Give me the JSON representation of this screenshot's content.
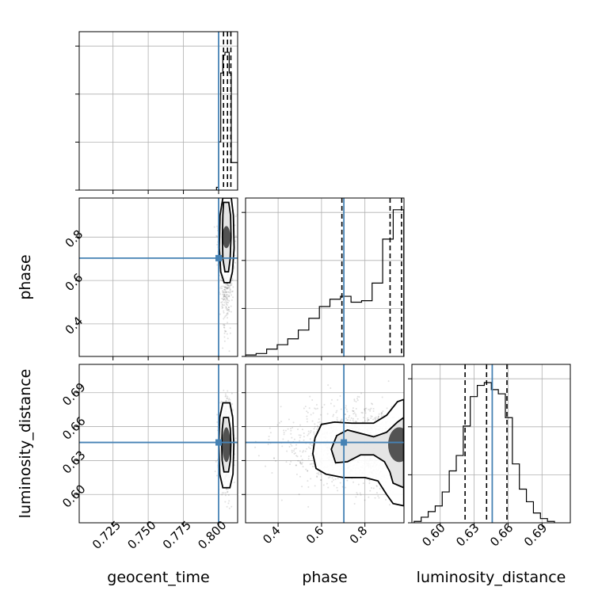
{
  "chart_data": {
    "type": "corner",
    "parameters": [
      "geocent_time",
      "phase",
      "luminosity_distance"
    ],
    "axis_labels": {
      "geocent_time": "geocent_time",
      "phase": "phase",
      "luminosity_distance": "luminosity_distance"
    },
    "ranges": {
      "geocent_time": [
        0.701,
        0.8135
      ],
      "phase": [
        0.25,
        0.98
      ],
      "luminosity_distance": [
        0.575,
        0.715
      ]
    },
    "ticks": {
      "geocent_time": [
        "0.725",
        "0.750",
        "0.775",
        "0.800"
      ],
      "phase": [
        "0.4",
        "0.6",
        "0.8"
      ],
      "luminosity_distance": [
        "0.60",
        "0.63",
        "0.66",
        "0.69"
      ]
    },
    "truths": {
      "geocent_time": 0.8,
      "phase": 0.703,
      "luminosity_distance": 0.646
    },
    "truth_color": "#4682b4",
    "quantiles": {
      "geocent_time": [
        0.8035,
        0.8063,
        0.8087
      ],
      "phase": [
        0.694,
        0.916,
        0.969
      ],
      "luminosity_distance": [
        0.622,
        0.641,
        0.659
      ]
    },
    "marginals": {
      "geocent_time": {
        "bin_edges": [
          0.7985,
          0.8,
          0.8015,
          0.803,
          0.8045,
          0.806,
          0.8075,
          0.809,
          0.8105,
          0.8135
        ],
        "counts": [
          0.02,
          0.35,
          0.85,
          0.98,
          1.0,
          1.0,
          0.85,
          0.2,
          0.2
        ]
      },
      "phase": {
        "bin_edges": [
          0.25,
          0.2986,
          0.3472,
          0.3958,
          0.4444,
          0.493,
          0.5416,
          0.5902,
          0.6388,
          0.6874,
          0.736,
          0.7846,
          0.8332,
          0.8818,
          0.9304,
          0.979
        ],
        "counts": [
          0.01,
          0.02,
          0.05,
          0.08,
          0.12,
          0.18,
          0.26,
          0.34,
          0.39,
          0.41,
          0.37,
          0.38,
          0.5,
          0.8,
          1.0
        ],
        "ymax": 1.08
      },
      "luminosity_distance": {
        "bin_edges": [
          0.577,
          0.5832,
          0.5894,
          0.5956,
          0.6018,
          0.608,
          0.6142,
          0.6204,
          0.6266,
          0.6328,
          0.639,
          0.6452,
          0.6514,
          0.6576,
          0.6638,
          0.67,
          0.6762,
          0.6824,
          0.6886,
          0.6948,
          0.701
        ],
        "counts": [
          0.01,
          0.04,
          0.08,
          0.12,
          0.22,
          0.37,
          0.48,
          0.69,
          0.9,
          0.98,
          1.0,
          0.95,
          0.92,
          0.75,
          0.42,
          0.24,
          0.15,
          0.07,
          0.03,
          0.01
        ],
        "ymax": 1.13
      }
    },
    "joint_2d": [
      {
        "x": "geocent_time",
        "y": "phase",
        "center": [
          0.8055,
          0.8
        ],
        "spread": [
          0.0022,
          0.12
        ],
        "contours": [
          [
            [
              0.8035,
              0.96
            ],
            [
              0.8072,
              0.96
            ],
            [
              0.8085,
              0.9
            ],
            [
              0.8088,
              0.8
            ],
            [
              0.8082,
              0.7
            ],
            [
              0.807,
              0.64
            ],
            [
              0.8045,
              0.64
            ],
            [
              0.803,
              0.7
            ],
            [
              0.8027,
              0.8
            ],
            [
              0.803,
              0.9
            ]
          ],
          [
            [
              0.803,
              0.98
            ],
            [
              0.809,
              0.98
            ],
            [
              0.8105,
              0.9
            ],
            [
              0.811,
              0.75
            ],
            [
              0.8098,
              0.64
            ],
            [
              0.808,
              0.59
            ],
            [
              0.804,
              0.59
            ],
            [
              0.8015,
              0.64
            ],
            [
              0.8005,
              0.75
            ],
            [
              0.801,
              0.9
            ]
          ]
        ]
      },
      {
        "x": "geocent_time",
        "y": "luminosity_distance",
        "center": [
          0.8055,
          0.644
        ],
        "spread": [
          0.0022,
          0.016
        ],
        "contours": [
          [
            [
              0.8035,
              0.668
            ],
            [
              0.807,
              0.668
            ],
            [
              0.8083,
              0.658
            ],
            [
              0.8087,
              0.644
            ],
            [
              0.8083,
              0.63
            ],
            [
              0.807,
              0.62
            ],
            [
              0.8038,
              0.62
            ],
            [
              0.8025,
              0.63
            ],
            [
              0.8022,
              0.644
            ],
            [
              0.8026,
              0.658
            ]
          ],
          [
            [
              0.803,
              0.681
            ],
            [
              0.808,
              0.681
            ],
            [
              0.81,
              0.668
            ],
            [
              0.8108,
              0.644
            ],
            [
              0.8102,
              0.618
            ],
            [
              0.808,
              0.606
            ],
            [
              0.803,
              0.606
            ],
            [
              0.8008,
              0.618
            ],
            [
              0.8002,
              0.644
            ],
            [
              0.8008,
              0.668
            ]
          ]
        ]
      },
      {
        "x": "phase",
        "y": "luminosity_distance",
        "center": [
          0.9,
          0.644
        ],
        "spread": [
          0.18,
          0.017
        ],
        "contours": [
          [
            [
              0.979,
              0.668
            ],
            [
              0.95,
              0.664
            ],
            [
              0.9,
              0.655
            ],
            [
              0.84,
              0.651
            ],
            [
              0.78,
              0.654
            ],
            [
              0.72,
              0.657
            ],
            [
              0.67,
              0.652
            ],
            [
              0.645,
              0.64
            ],
            [
              0.665,
              0.628
            ],
            [
              0.72,
              0.629
            ],
            [
              0.78,
              0.635
            ],
            [
              0.84,
              0.635
            ],
            [
              0.89,
              0.629
            ],
            [
              0.915,
              0.62
            ],
            [
              0.93,
              0.61
            ],
            [
              0.979,
              0.606
            ]
          ],
          [
            [
              0.979,
              0.684
            ],
            [
              0.95,
              0.682
            ],
            [
              0.9,
              0.67
            ],
            [
              0.84,
              0.663
            ],
            [
              0.74,
              0.663
            ],
            [
              0.66,
              0.664
            ],
            [
              0.6,
              0.662
            ],
            [
              0.57,
              0.65
            ],
            [
              0.56,
              0.636
            ],
            [
              0.575,
              0.623
            ],
            [
              0.62,
              0.618
            ],
            [
              0.7,
              0.615
            ],
            [
              0.8,
              0.615
            ],
            [
              0.86,
              0.612
            ],
            [
              0.9,
              0.6
            ],
            [
              0.93,
              0.592
            ],
            [
              0.979,
              0.59
            ]
          ]
        ]
      }
    ]
  }
}
